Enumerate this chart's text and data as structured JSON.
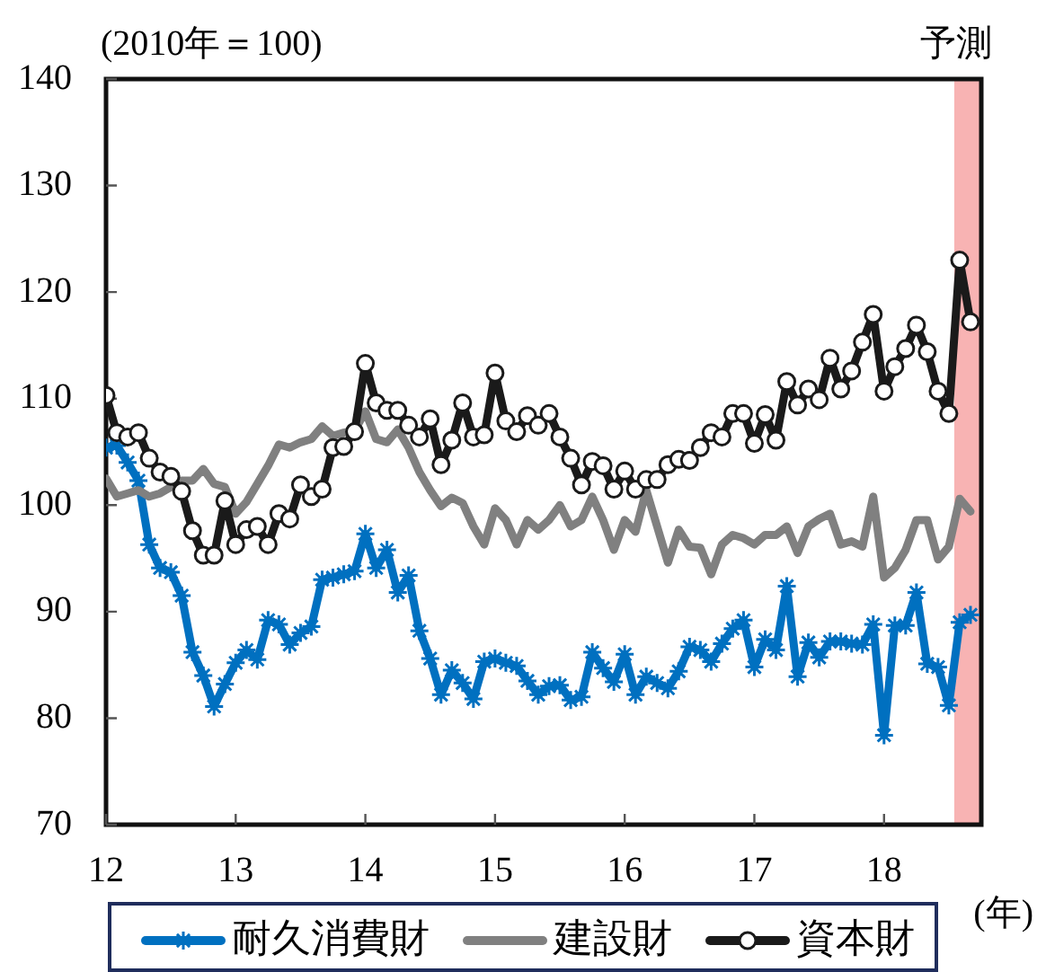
{
  "chart_data": {
    "type": "line",
    "ylabel": "(2010年＝100)",
    "xlabel": "(年)",
    "x": [
      "2012-01",
      "2012-02",
      "2012-03",
      "2012-04",
      "2012-05",
      "2012-06",
      "2012-07",
      "2012-08",
      "2012-09",
      "2012-10",
      "2012-11",
      "2012-12",
      "2013-01",
      "2013-02",
      "2013-03",
      "2013-04",
      "2013-05",
      "2013-06",
      "2013-07",
      "2013-08",
      "2013-09",
      "2013-10",
      "2013-11",
      "2013-12",
      "2014-01",
      "2014-02",
      "2014-03",
      "2014-04",
      "2014-05",
      "2014-06",
      "2014-07",
      "2014-08",
      "2014-09",
      "2014-10",
      "2014-11",
      "2014-12",
      "2015-01",
      "2015-02",
      "2015-03",
      "2015-04",
      "2015-05",
      "2015-06",
      "2015-07",
      "2015-08",
      "2015-09",
      "2015-10",
      "2015-11",
      "2015-12",
      "2016-01",
      "2016-02",
      "2016-03",
      "2016-04",
      "2016-05",
      "2016-06",
      "2016-07",
      "2016-08",
      "2016-09",
      "2016-10",
      "2016-11",
      "2016-12",
      "2017-01",
      "2017-02",
      "2017-03",
      "2017-04",
      "2017-05",
      "2017-06",
      "2017-07",
      "2017-08",
      "2017-09",
      "2017-10",
      "2017-11",
      "2017-12",
      "2018-01",
      "2018-02",
      "2018-03",
      "2018-04",
      "2018-05",
      "2018-06",
      "2018-07",
      "2018-08",
      "2018-09"
    ],
    "series": [
      {
        "name": "耐久消費財",
        "color": "#0070c0",
        "marker": "cross",
        "values": [
          105.4,
          105.6,
          104.0,
          102.3,
          96.3,
          94.1,
          93.7,
          91.5,
          86.2,
          84.0,
          81.1,
          83.2,
          85.2,
          86.4,
          85.5,
          89.2,
          88.8,
          86.9,
          88.0,
          88.6,
          93.0,
          93.2,
          93.5,
          93.8,
          97.3,
          94.1,
          95.8,
          91.8,
          93.4,
          88.2,
          85.6,
          82.2,
          84.5,
          83.3,
          81.8,
          85.3,
          85.6,
          85.2,
          84.9,
          83.5,
          82.2,
          83.0,
          83.1,
          81.7,
          82.0,
          86.2,
          84.7,
          83.4,
          86.0,
          82.2,
          83.9,
          83.3,
          82.8,
          84.4,
          86.7,
          86.4,
          85.3,
          87.0,
          88.4,
          89.2,
          84.8,
          87.4,
          86.4,
          92.4,
          83.9,
          87.1,
          85.7,
          87.2,
          87.2,
          87.0,
          86.9,
          88.8,
          78.4,
          88.7,
          88.7,
          91.8,
          85.1,
          84.8,
          81.2,
          89.0,
          89.7
        ]
      },
      {
        "name": "建設財",
        "color": "#808080",
        "marker": "none",
        "values": [
          102.5,
          100.8,
          101.1,
          101.4,
          100.8,
          101.1,
          101.7,
          102.3,
          102.3,
          103.4,
          102.0,
          101.7,
          99.2,
          100.3,
          102.0,
          103.7,
          105.7,
          105.4,
          105.9,
          106.2,
          107.4,
          106.5,
          106.8,
          107.0,
          108.8,
          106.2,
          105.9,
          107.1,
          105.4,
          103.1,
          101.4,
          99.9,
          100.7,
          100.2,
          98.0,
          96.3,
          99.7,
          98.6,
          96.3,
          98.6,
          97.7,
          98.6,
          100.0,
          98.0,
          98.6,
          100.8,
          98.6,
          95.8,
          98.6,
          97.5,
          101.4,
          98.0,
          94.6,
          97.7,
          96.1,
          96.0,
          93.5,
          96.3,
          97.2,
          96.9,
          96.3,
          97.2,
          97.2,
          98.0,
          95.5,
          98.0,
          98.7,
          99.2,
          96.3,
          96.6,
          96.1,
          100.8,
          93.2,
          94.1,
          95.8,
          98.6,
          98.6,
          94.9,
          96.1,
          100.6,
          99.4
        ]
      },
      {
        "name": "資本財",
        "color": "#1a1a1a",
        "marker": "circle",
        "values": [
          110.3,
          106.8,
          106.4,
          106.8,
          104.4,
          103.1,
          102.7,
          101.3,
          97.6,
          95.3,
          95.3,
          100.4,
          96.3,
          97.7,
          98.0,
          96.3,
          99.2,
          98.7,
          101.9,
          100.8,
          101.5,
          105.4,
          105.5,
          106.9,
          113.3,
          109.6,
          108.9,
          108.9,
          107.5,
          106.4,
          108.1,
          103.8,
          106.1,
          109.6,
          106.4,
          106.6,
          112.4,
          107.9,
          106.9,
          108.4,
          107.5,
          108.6,
          106.4,
          104.4,
          101.9,
          104.1,
          103.7,
          101.5,
          103.2,
          101.5,
          102.4,
          102.4,
          103.8,
          104.3,
          104.2,
          105.4,
          106.8,
          106.4,
          108.6,
          108.6,
          105.8,
          108.5,
          106.1,
          111.6,
          109.4,
          110.9,
          109.9,
          113.8,
          110.9,
          112.6,
          115.3,
          117.9,
          110.7,
          113.0,
          114.7,
          116.9,
          114.4,
          110.7,
          108.6,
          123.0,
          117.2
        ]
      }
    ],
    "xlim": [
      "2012-01",
      "2018-10"
    ],
    "xticks": [
      {
        "value": "2012-01",
        "label": "12"
      },
      {
        "value": "2013-01",
        "label": "13"
      },
      {
        "value": "2014-01",
        "label": "14"
      },
      {
        "value": "2015-01",
        "label": "15"
      },
      {
        "value": "2016-01",
        "label": "16"
      },
      {
        "value": "2017-01",
        "label": "17"
      },
      {
        "value": "2018-01",
        "label": "18"
      }
    ],
    "ylim": [
      70,
      140
    ],
    "yticks": [
      70,
      80,
      90,
      100,
      110,
      120,
      130,
      140
    ],
    "bands": [
      {
        "axis": "x",
        "from": "2018-07-16",
        "to": "2018-10",
        "label": "予測",
        "color": "#f8b3b3"
      }
    ],
    "legend": "bottom"
  }
}
